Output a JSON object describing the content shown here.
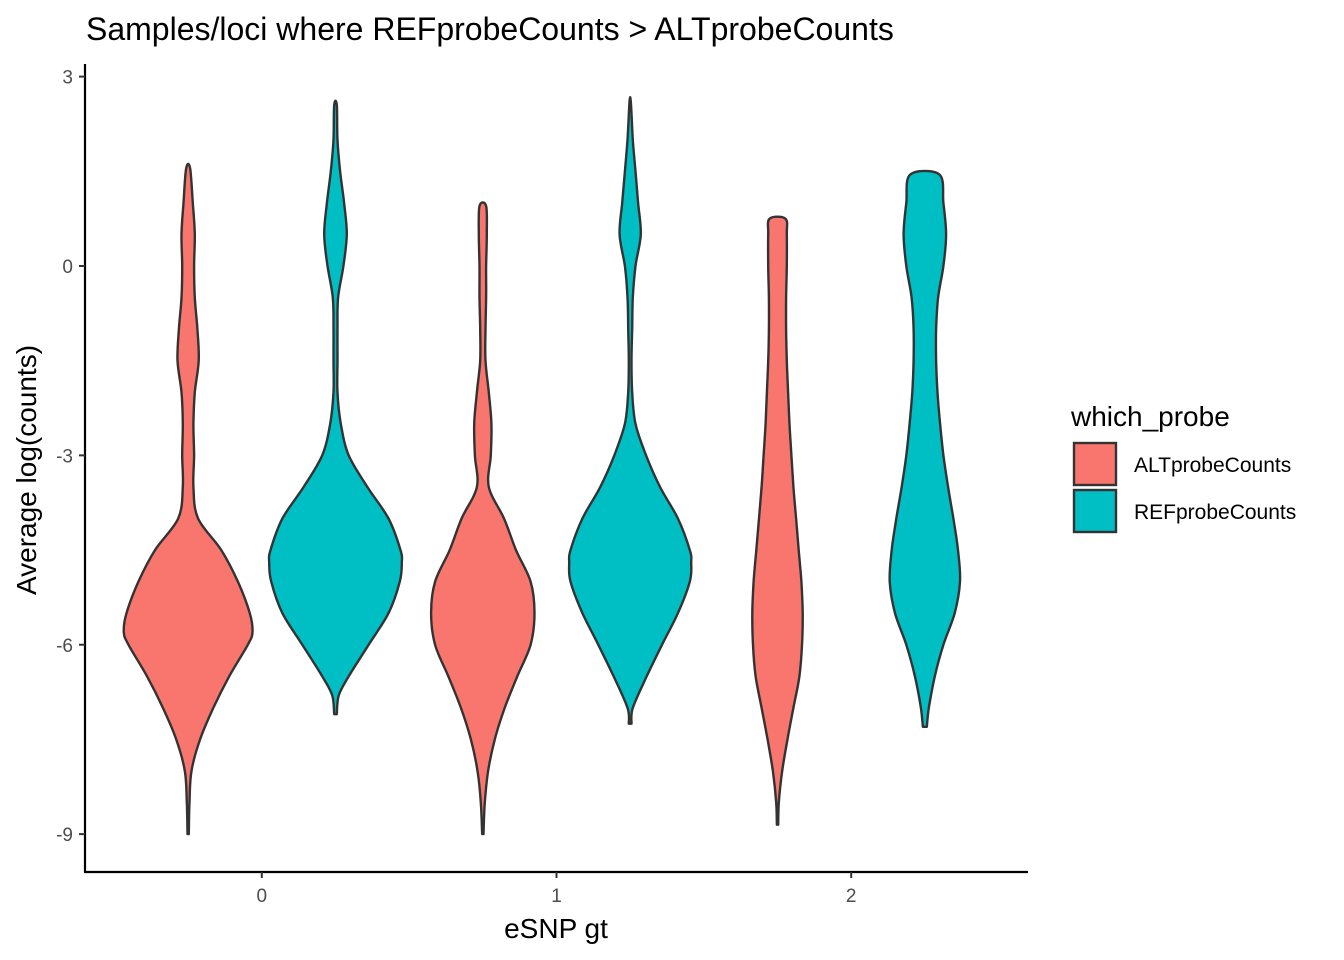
{
  "chart_data": {
    "type": "violin",
    "title": "Samples/loci where REFprobeCounts > ALTprobeCounts",
    "xlabel": "eSNP gt",
    "ylabel": "Average log(counts)",
    "categories": [
      "0",
      "1",
      "2"
    ],
    "yticks": [
      "3",
      "0",
      "-3",
      "-6",
      "-9"
    ],
    "ytick_values": [
      3,
      0,
      -3,
      -6,
      -9
    ],
    "ylim": [
      -9.6,
      3.2
    ],
    "xlim": [
      -0.6,
      2.6
    ],
    "grid": false,
    "legend": {
      "title": "which_probe",
      "placement": "right",
      "entries": [
        "ALTprobeCounts",
        "REFprobeCounts"
      ]
    },
    "series": [
      {
        "name": "ALTprobeCounts",
        "color": "#F8766D",
        "violins": [
          {
            "category": "0",
            "ymin": -9.0,
            "ymax": 1.55,
            "profile": [
              [
                -9.0,
                0.01
              ],
              [
                -8.5,
                0.02
              ],
              [
                -8.0,
                0.05
              ],
              [
                -7.5,
                0.18
              ],
              [
                -7.0,
                0.38
              ],
              [
                -6.5,
                0.62
              ],
              [
                -6.0,
                0.9
              ],
              [
                -5.8,
                0.97
              ],
              [
                -5.5,
                0.93
              ],
              [
                -5.0,
                0.75
              ],
              [
                -4.5,
                0.5
              ],
              [
                -4.0,
                0.15
              ],
              [
                -3.5,
                0.08
              ],
              [
                -3.0,
                0.09
              ],
              [
                -2.5,
                0.08
              ],
              [
                -2.0,
                0.1
              ],
              [
                -1.5,
                0.16
              ],
              [
                -1.0,
                0.14
              ],
              [
                -0.5,
                0.1
              ],
              [
                0.0,
                0.09
              ],
              [
                0.5,
                0.1
              ],
              [
                1.0,
                0.07
              ],
              [
                1.55,
                0.03
              ]
            ]
          },
          {
            "category": "1",
            "ymin": -9.0,
            "ymax": 0.95,
            "profile": [
              [
                -9.0,
                0.01
              ],
              [
                -8.5,
                0.03
              ],
              [
                -8.0,
                0.08
              ],
              [
                -7.5,
                0.18
              ],
              [
                -7.0,
                0.33
              ],
              [
                -6.5,
                0.52
              ],
              [
                -6.0,
                0.72
              ],
              [
                -5.5,
                0.78
              ],
              [
                -5.0,
                0.72
              ],
              [
                -4.5,
                0.5
              ],
              [
                -4.0,
                0.32
              ],
              [
                -3.5,
                0.09
              ],
              [
                -3.0,
                0.12
              ],
              [
                -2.5,
                0.13
              ],
              [
                -2.0,
                0.09
              ],
              [
                -1.5,
                0.04
              ],
              [
                -1.0,
                0.04
              ],
              [
                -0.5,
                0.05
              ],
              [
                0.0,
                0.05
              ],
              [
                0.5,
                0.06
              ],
              [
                0.95,
                0.05
              ]
            ]
          },
          {
            "category": "2",
            "ymin": -8.85,
            "ymax": 0.75,
            "profile": [
              [
                -8.85,
                0.01
              ],
              [
                -8.5,
                0.02
              ],
              [
                -8.0,
                0.07
              ],
              [
                -7.5,
                0.15
              ],
              [
                -7.0,
                0.24
              ],
              [
                -6.5,
                0.33
              ],
              [
                -6.0,
                0.37
              ],
              [
                -5.5,
                0.38
              ],
              [
                -5.0,
                0.36
              ],
              [
                -4.5,
                0.32
              ],
              [
                -4.0,
                0.28
              ],
              [
                -3.5,
                0.24
              ],
              [
                -3.0,
                0.21
              ],
              [
                -2.5,
                0.18
              ],
              [
                -2.0,
                0.16
              ],
              [
                -1.5,
                0.14
              ],
              [
                -1.0,
                0.13
              ],
              [
                -0.5,
                0.13
              ],
              [
                0.0,
                0.14
              ],
              [
                0.5,
                0.14
              ],
              [
                0.75,
                0.12
              ]
            ]
          }
        ]
      },
      {
        "name": "REFprobeCounts",
        "color": "#00BFC4",
        "violins": [
          {
            "category": "0",
            "ymin": -7.1,
            "ymax": 2.55,
            "profile": [
              [
                -7.1,
                0.02
              ],
              [
                -6.8,
                0.05
              ],
              [
                -6.5,
                0.2
              ],
              [
                -6.0,
                0.5
              ],
              [
                -5.5,
                0.8
              ],
              [
                -5.0,
                0.97
              ],
              [
                -4.7,
                1.0
              ],
              [
                -4.5,
                0.98
              ],
              [
                -4.0,
                0.8
              ],
              [
                -3.5,
                0.48
              ],
              [
                -3.0,
                0.2
              ],
              [
                -2.5,
                0.08
              ],
              [
                -2.0,
                0.03
              ],
              [
                -1.5,
                0.03
              ],
              [
                -1.0,
                0.03
              ],
              [
                -0.5,
                0.04
              ],
              [
                0.0,
                0.12
              ],
              [
                0.5,
                0.17
              ],
              [
                1.0,
                0.13
              ],
              [
                1.5,
                0.07
              ],
              [
                2.0,
                0.03
              ],
              [
                2.55,
                0.02
              ]
            ]
          },
          {
            "category": "1",
            "ymin": -7.25,
            "ymax": 2.6,
            "profile": [
              [
                -7.25,
                0.02
              ],
              [
                -7.0,
                0.04
              ],
              [
                -6.5,
                0.25
              ],
              [
                -6.0,
                0.48
              ],
              [
                -5.5,
                0.72
              ],
              [
                -5.0,
                0.9
              ],
              [
                -4.7,
                0.92
              ],
              [
                -4.5,
                0.9
              ],
              [
                -4.0,
                0.72
              ],
              [
                -3.5,
                0.45
              ],
              [
                -3.0,
                0.24
              ],
              [
                -2.5,
                0.08
              ],
              [
                -2.0,
                0.03
              ],
              [
                -1.5,
                0.02
              ],
              [
                -1.0,
                0.03
              ],
              [
                -0.5,
                0.04
              ],
              [
                0.0,
                0.08
              ],
              [
                0.5,
                0.16
              ],
              [
                1.0,
                0.12
              ],
              [
                1.5,
                0.08
              ],
              [
                2.0,
                0.04
              ],
              [
                2.6,
                0.01
              ]
            ]
          },
          {
            "category": "2",
            "ymin": -7.3,
            "ymax": 1.45,
            "profile": [
              [
                -7.3,
                0.03
              ],
              [
                -7.0,
                0.06
              ],
              [
                -6.5,
                0.15
              ],
              [
                -6.0,
                0.28
              ],
              [
                -5.5,
                0.45
              ],
              [
                -5.0,
                0.53
              ],
              [
                -4.5,
                0.5
              ],
              [
                -4.0,
                0.43
              ],
              [
                -3.5,
                0.35
              ],
              [
                -3.0,
                0.28
              ],
              [
                -2.5,
                0.23
              ],
              [
                -2.0,
                0.19
              ],
              [
                -1.5,
                0.17
              ],
              [
                -1.0,
                0.17
              ],
              [
                -0.5,
                0.2
              ],
              [
                0.0,
                0.28
              ],
              [
                0.5,
                0.32
              ],
              [
                1.0,
                0.28
              ],
              [
                1.45,
                0.22
              ]
            ]
          }
        ]
      }
    ]
  }
}
